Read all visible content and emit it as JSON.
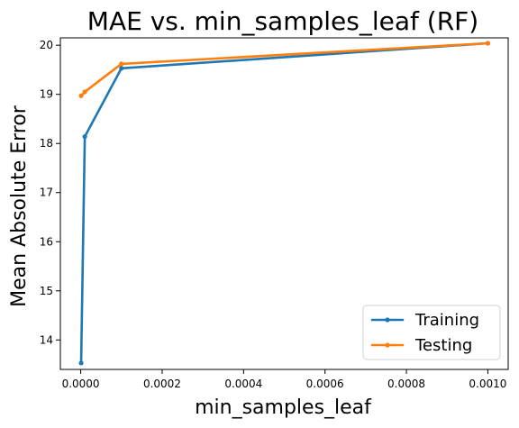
{
  "chart_data": {
    "type": "line",
    "title": "MAE vs. min_samples_leaf (RF)",
    "xlabel": "min_samples_leaf",
    "ylabel": "Mean Absolute Error",
    "xlim": [
      -5e-05,
      0.00105
    ],
    "ylim": [
      13.4,
      20.15
    ],
    "xticks": [
      0.0,
      0.0002,
      0.0004,
      0.0006,
      0.0008,
      0.001
    ],
    "xtick_labels": [
      "0.0000",
      "0.0002",
      "0.0004",
      "0.0006",
      "0.0008",
      "0.0010"
    ],
    "yticks": [
      14,
      15,
      16,
      17,
      18,
      19,
      20
    ],
    "ytick_labels": [
      "14",
      "15",
      "16",
      "17",
      "18",
      "19",
      "20"
    ],
    "grid": false,
    "legend_position": "lower-right",
    "series": [
      {
        "name": "Training",
        "color": "#1f77b4",
        "x": [
          1e-06,
          1e-05,
          0.0001,
          0.001
        ],
        "y": [
          13.53,
          18.14,
          19.53,
          20.04
        ]
      },
      {
        "name": "Testing",
        "color": "#ff7f0e",
        "x": [
          1e-06,
          1e-05,
          0.0001,
          0.001
        ],
        "y": [
          18.97,
          19.05,
          19.62,
          20.04
        ]
      }
    ]
  }
}
